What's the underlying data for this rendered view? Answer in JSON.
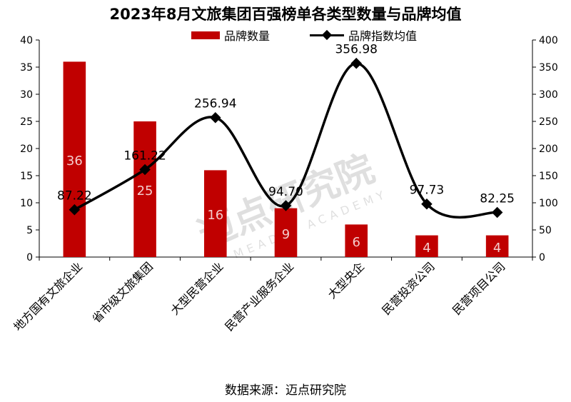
{
  "title": "2023年8月文旅集团百强榜单各类型数量与品牌均值",
  "source": "数据来源：迈点研究院",
  "watermark": {
    "cn": "迈点研究院",
    "en": "MEADIN ACADEMY"
  },
  "colors": {
    "bar": "#c00000",
    "bar_label": "#f4cccc",
    "line": "#000000",
    "axis": "#000000"
  },
  "chart_data": {
    "type": "bar",
    "categories": [
      "地方国有文旅企业",
      "省市级文旅集团",
      "大型民营企业",
      "民营产业服务企业",
      "大型央企",
      "民营投资公司",
      "民营项目公司"
    ],
    "series": [
      {
        "name": "品牌数量",
        "type": "bar",
        "axis": "left",
        "values": [
          36,
          25,
          16,
          9,
          6,
          4,
          4
        ],
        "labels": [
          "36",
          "25",
          "16",
          "9",
          "6",
          "4",
          "4"
        ]
      },
      {
        "name": "品牌指数均值",
        "type": "line",
        "axis": "right",
        "values": [
          87.22,
          161.22,
          256.94,
          94.7,
          356.98,
          97.73,
          82.25
        ],
        "labels": [
          "87.22",
          "161.22",
          "256.94",
          "94.70",
          "356.98",
          "97.73",
          "82.25"
        ]
      }
    ],
    "y_left": {
      "min": 0,
      "max": 40,
      "step": 5,
      "ticks": [
        "0",
        "5",
        "10",
        "15",
        "20",
        "25",
        "30",
        "35",
        "40"
      ]
    },
    "y_right": {
      "min": 0,
      "max": 400,
      "step": 50,
      "ticks": [
        "0",
        "50",
        "100",
        "150",
        "200",
        "250",
        "300",
        "350",
        "400"
      ]
    },
    "grid": false,
    "legend_position": "top-center"
  }
}
